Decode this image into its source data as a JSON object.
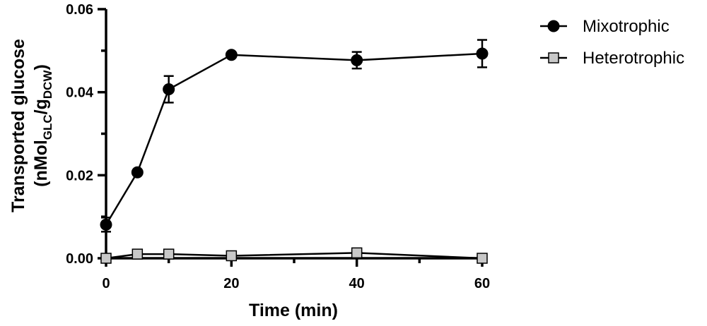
{
  "chart_data": {
    "type": "line",
    "xlabel": "Time (min)",
    "ylabel": {
      "line1": "Transported glucose",
      "line2_prefix": "(nMol",
      "line2_sub1": "GLC",
      "line2_mid": "/g",
      "line2_sub2": "DCW",
      "line2_suffix": ")"
    },
    "xlim": [
      0,
      60
    ],
    "ylim": [
      0,
      0.06
    ],
    "x_ticks": [
      0,
      20,
      40,
      60
    ],
    "x_minor_ticks": [
      10,
      30,
      50
    ],
    "x_tick_labels": [
      "0",
      "20",
      "40",
      "60"
    ],
    "y_ticks": [
      0,
      0.02,
      0.04,
      0.06
    ],
    "y_minor_ticks": [
      0.01,
      0.03,
      0.05
    ],
    "y_tick_labels": [
      "0.00",
      "0.02",
      "0.04",
      "0.06"
    ],
    "grid": false,
    "legend_position": "top-right, outside plot",
    "series": [
      {
        "name": "Mixotrophic",
        "marker": "circle",
        "color": "#000000",
        "x": [
          0,
          5,
          10,
          20,
          40,
          60
        ],
        "y": [
          0.0081,
          0.0207,
          0.0407,
          0.049,
          0.0477,
          0.0493
        ],
        "err": [
          0.0017,
          0.0,
          0.0032,
          0.0,
          0.002,
          0.0033
        ]
      },
      {
        "name": "Heterotrophic",
        "marker": "square",
        "color": "#c8c8c8",
        "x": [
          0,
          5,
          10,
          20,
          40,
          60
        ],
        "y": [
          0.0,
          0.001,
          0.001,
          0.0006,
          0.0013,
          0.0
        ],
        "err": [
          0,
          0,
          0,
          0,
          0,
          0
        ]
      }
    ]
  }
}
